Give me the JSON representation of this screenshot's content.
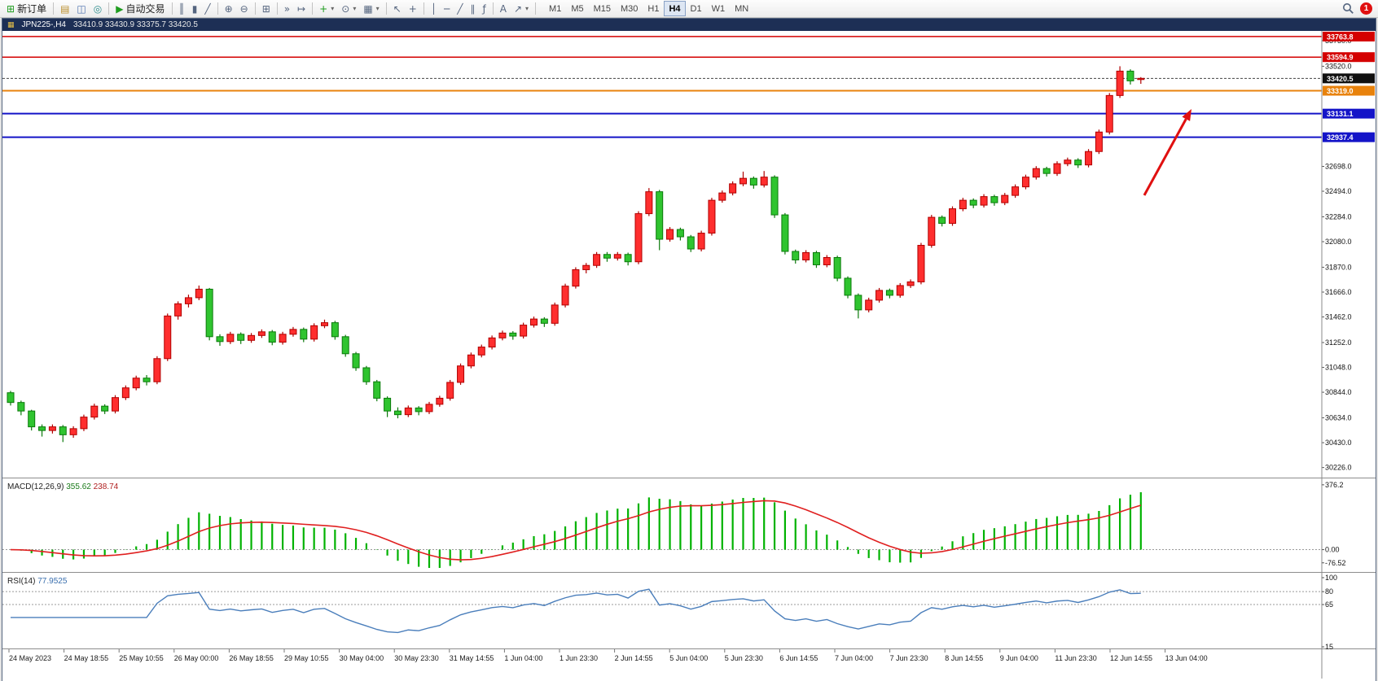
{
  "toolbar": {
    "groups": [
      [
        {
          "name": "new-order-button",
          "glyph": "⊞",
          "glyph_color": "#1f9d1f",
          "label": "新订单"
        }
      ],
      [
        {
          "name": "market-watch-icon",
          "glyph": "▤",
          "glyph_color": "#bb8f2c"
        },
        {
          "name": "data-window-icon",
          "glyph": "◫",
          "glyph_color": "#4a6fae"
        },
        {
          "name": "navigator-icon",
          "glyph": "◎",
          "glyph_color": "#2f8f8f"
        }
      ],
      [
        {
          "name": "auto-trading-button",
          "glyph": "▶",
          "glyph_color": "#1f9d1f",
          "label": "自动交易"
        }
      ],
      [
        {
          "name": "bars-chart-icon",
          "glyph": "║"
        },
        {
          "name": "candlestick-chart-icon",
          "glyph": "▮"
        },
        {
          "name": "line-chart-icon",
          "glyph": "╱"
        }
      ],
      [
        {
          "name": "zoom-in-icon",
          "glyph": "⊕"
        },
        {
          "name": "zoom-out-icon",
          "glyph": "⊖"
        }
      ],
      [
        {
          "name": "tile-windows-icon",
          "glyph": "⊞"
        }
      ],
      [
        {
          "name": "auto-scroll-icon",
          "glyph": "»"
        },
        {
          "name": "chart-shift-icon",
          "glyph": "↦"
        }
      ],
      [
        {
          "name": "indicators-button",
          "glyph": "+",
          "glyph_color": "#1f9d1f",
          "dropdown": true
        },
        {
          "name": "periods-button",
          "glyph": "⊙",
          "dropdown": true
        },
        {
          "name": "templates-button",
          "glyph": "▦",
          "dropdown": true
        }
      ],
      [
        {
          "name": "cursor-icon",
          "glyph": "↖"
        },
        {
          "name": "crosshair-icon",
          "glyph": "+"
        }
      ],
      [
        {
          "name": "vertical-line-icon",
          "glyph": "│"
        },
        {
          "name": "horizontal-line-icon",
          "glyph": "─"
        },
        {
          "name": "trendline-icon",
          "glyph": "╱"
        },
        {
          "name": "channel-icon",
          "glyph": "∥"
        },
        {
          "name": "fibonacci-icon",
          "glyph": "ƒ"
        }
      ],
      [
        {
          "name": "text-tool-icon",
          "glyph": "A"
        },
        {
          "name": "arrow-tool-icon",
          "glyph": "↗",
          "dropdown": true
        }
      ]
    ],
    "timeframes": [
      "M1",
      "M5",
      "M15",
      "M30",
      "H1",
      "H4",
      "D1",
      "W1",
      "MN"
    ],
    "active_timeframe": "H4",
    "notification_count": "1"
  },
  "chart_window": {
    "title": "JPN225-,H4",
    "ohlc_text": "33410.9 33430.9 33375.7 33420.5"
  },
  "chart_data": {
    "type": "candlestick",
    "symbol": "JPN225-",
    "period": "H4",
    "current_bar": {
      "open": 33410.9,
      "high": 33430.9,
      "low": 33375.7,
      "close": 33420.5
    },
    "bid": 33420.5,
    "up_color": "#ff2e2e",
    "up_border": "#b00000",
    "down_color": "#2fc42f",
    "down_border": "#0b7a0b",
    "price_axis_labels": [
      "33730.0",
      "33520.0",
      "32698.0",
      "32494.0",
      "32284.0",
      "32080.0",
      "31870.0",
      "31666.0",
      "31462.0",
      "31252.0",
      "31048.0",
      "30844.0",
      "30634.0",
      "30430.0",
      "30226.0"
    ],
    "hlines": [
      {
        "name": "resistance-line-1",
        "price": 33763.8,
        "color": "#d40000",
        "width": 1.5
      },
      {
        "name": "resistance-line-2",
        "price": 33594.9,
        "color": "#d40000",
        "width": 1.5
      },
      {
        "name": "support-line-orange",
        "price": 33319.0,
        "color": "#e8820c",
        "width": 2
      },
      {
        "name": "support-line-blue-1",
        "price": 33131.1,
        "color": "#1414c8",
        "width": 2
      },
      {
        "name": "support-line-blue-2",
        "price": 32937.4,
        "color": "#1414c8",
        "width": 2
      }
    ],
    "bid_label_color": "#101010",
    "candles": [
      [
        30840,
        30855,
        30735,
        30760
      ],
      [
        30760,
        30775,
        30655,
        30690
      ],
      [
        30690,
        30700,
        30530,
        30560
      ],
      [
        30560,
        30580,
        30480,
        30530
      ],
      [
        30530,
        30580,
        30505,
        30560
      ],
      [
        30560,
        30575,
        30435,
        30495
      ],
      [
        30495,
        30565,
        30470,
        30545
      ],
      [
        30545,
        30660,
        30525,
        30640
      ],
      [
        30640,
        30750,
        30620,
        30730
      ],
      [
        30730,
        30745,
        30665,
        30690
      ],
      [
        30690,
        30820,
        30670,
        30800
      ],
      [
        30800,
        30900,
        30780,
        30880
      ],
      [
        30880,
        30980,
        30860,
        30960
      ],
      [
        30960,
        30985,
        30900,
        30930
      ],
      [
        30930,
        31140,
        30910,
        31120
      ],
      [
        31120,
        31490,
        31100,
        31470
      ],
      [
        31470,
        31590,
        31440,
        31570
      ],
      [
        31570,
        31645,
        31540,
        31620
      ],
      [
        31620,
        31720,
        31600,
        31690
      ],
      [
        31690,
        31700,
        31270,
        31300
      ],
      [
        31300,
        31320,
        31225,
        31260
      ],
      [
        31260,
        31340,
        31240,
        31320
      ],
      [
        31320,
        31335,
        31240,
        31270
      ],
      [
        31270,
        31330,
        31250,
        31310
      ],
      [
        31310,
        31360,
        31290,
        31340
      ],
      [
        31340,
        31355,
        31230,
        31255
      ],
      [
        31255,
        31340,
        31235,
        31320
      ],
      [
        31320,
        31380,
        31300,
        31360
      ],
      [
        31360,
        31375,
        31255,
        31280
      ],
      [
        31280,
        31410,
        31260,
        31390
      ],
      [
        31390,
        31440,
        31370,
        31415
      ],
      [
        31415,
        31430,
        31275,
        31300
      ],
      [
        31300,
        31315,
        31135,
        31160
      ],
      [
        31160,
        31175,
        31020,
        31045
      ],
      [
        31045,
        31060,
        30905,
        30930
      ],
      [
        30930,
        30945,
        30770,
        30795
      ],
      [
        30795,
        30810,
        30640,
        30690
      ],
      [
        30690,
        30720,
        30630,
        30660
      ],
      [
        30660,
        30735,
        30640,
        30715
      ],
      [
        30715,
        30730,
        30655,
        30685
      ],
      [
        30685,
        30765,
        30665,
        30745
      ],
      [
        30745,
        30815,
        30725,
        30795
      ],
      [
        30795,
        30945,
        30775,
        30925
      ],
      [
        30925,
        31080,
        30905,
        31060
      ],
      [
        31060,
        31170,
        31040,
        31150
      ],
      [
        31150,
        31235,
        31130,
        31215
      ],
      [
        31215,
        31310,
        31195,
        31290
      ],
      [
        31290,
        31350,
        31270,
        31330
      ],
      [
        31330,
        31345,
        31275,
        31305
      ],
      [
        31305,
        31415,
        31285,
        31395
      ],
      [
        31395,
        31465,
        31375,
        31445
      ],
      [
        31445,
        31460,
        31380,
        31410
      ],
      [
        31410,
        31580,
        31390,
        31560
      ],
      [
        31560,
        31735,
        31540,
        31715
      ],
      [
        31715,
        31870,
        31695,
        31850
      ],
      [
        31850,
        31905,
        31820,
        31885
      ],
      [
        31885,
        31995,
        31865,
        31975
      ],
      [
        31975,
        31995,
        31915,
        31945
      ],
      [
        31945,
        31995,
        31925,
        31975
      ],
      [
        31975,
        31990,
        31885,
        31915
      ],
      [
        31915,
        32330,
        31895,
        32310
      ],
      [
        32310,
        32520,
        32290,
        32490
      ],
      [
        32490,
        32505,
        32010,
        32100
      ],
      [
        32100,
        32200,
        32080,
        32180
      ],
      [
        32180,
        32195,
        32090,
        32120
      ],
      [
        32120,
        32135,
        31995,
        32020
      ],
      [
        32020,
        32170,
        32000,
        32150
      ],
      [
        32150,
        32440,
        32130,
        32420
      ],
      [
        32420,
        32500,
        32400,
        32480
      ],
      [
        32480,
        32575,
        32460,
        32555
      ],
      [
        32555,
        32655,
        32535,
        32600
      ],
      [
        32600,
        32615,
        32515,
        32545
      ],
      [
        32545,
        32660,
        32525,
        32610
      ],
      [
        32610,
        32625,
        32275,
        32300
      ],
      [
        32300,
        32315,
        31975,
        32000
      ],
      [
        32000,
        32015,
        31900,
        31930
      ],
      [
        31930,
        32010,
        31910,
        31990
      ],
      [
        31990,
        32005,
        31865,
        31890
      ],
      [
        31890,
        31970,
        31870,
        31950
      ],
      [
        31950,
        31965,
        31755,
        31780
      ],
      [
        31780,
        31795,
        31615,
        31640
      ],
      [
        31640,
        31655,
        31450,
        31520
      ],
      [
        31520,
        31620,
        31500,
        31600
      ],
      [
        31600,
        31700,
        31580,
        31680
      ],
      [
        31680,
        31695,
        31615,
        31640
      ],
      [
        31640,
        31740,
        31620,
        31720
      ],
      [
        31720,
        31770,
        31700,
        31750
      ],
      [
        31750,
        32070,
        31730,
        32050
      ],
      [
        32050,
        32300,
        32030,
        32280
      ],
      [
        32280,
        32295,
        32205,
        32230
      ],
      [
        32230,
        32370,
        32210,
        32350
      ],
      [
        32350,
        32440,
        32330,
        32420
      ],
      [
        32420,
        32435,
        32355,
        32380
      ],
      [
        32380,
        32470,
        32360,
        32450
      ],
      [
        32450,
        32465,
        32375,
        32400
      ],
      [
        32400,
        32480,
        32380,
        32460
      ],
      [
        32460,
        32550,
        32440,
        32530
      ],
      [
        32530,
        32630,
        32510,
        32610
      ],
      [
        32610,
        32700,
        32590,
        32680
      ],
      [
        32680,
        32695,
        32615,
        32640
      ],
      [
        32640,
        32740,
        32620,
        32720
      ],
      [
        32720,
        32770,
        32700,
        32750
      ],
      [
        32750,
        32765,
        32685,
        32710
      ],
      [
        32710,
        32840,
        32690,
        32820
      ],
      [
        32820,
        33000,
        32800,
        32980
      ],
      [
        32980,
        33300,
        32960,
        33280
      ],
      [
        33280,
        33520,
        33260,
        33480
      ],
      [
        33480,
        33495,
        33370,
        33400
      ],
      [
        33410.9,
        33430.9,
        33375.7,
        33420.5
      ]
    ],
    "time_labels": [
      "24 May 2023",
      "24 May 18:55",
      "25 May 10:55",
      "26 May 00:00",
      "26 May 18:55",
      "29 May 10:55",
      "30 May 04:00",
      "30 May 23:30",
      "31 May 14:55",
      "1 Jun 04:00",
      "1 Jun 23:30",
      "2 Jun 14:55",
      "5 Jun 04:00",
      "5 Jun 23:30",
      "6 Jun 14:55",
      "7 Jun 04:00",
      "7 Jun 23:30",
      "8 Jun 14:55",
      "9 Jun 04:00",
      "11 Jun 23:30",
      "12 Jun 14:55",
      "13 Jun 04:00"
    ],
    "macd": {
      "label": "MACD(12,26,9)",
      "value_main": "355.62",
      "value_signal": "238.74",
      "fast": 12,
      "slow": 26,
      "signal": 9,
      "axis_labels": [
        "376.2",
        "0.00",
        "-76.52"
      ],
      "hist_color": "#00b200",
      "signal_color": "#e02020"
    },
    "rsi": {
      "label": "RSI(14)",
      "value": "77.9525",
      "period": 14,
      "axis_labels": [
        "100",
        "80",
        "65",
        "15"
      ],
      "levels": [
        80,
        65
      ],
      "line_color": "#4a7ebb"
    },
    "arrow": {
      "name": "trend-arrow",
      "color": "#e01010",
      "from": [
        1402,
        202
      ],
      "to": [
        1460,
        96
      ]
    }
  }
}
